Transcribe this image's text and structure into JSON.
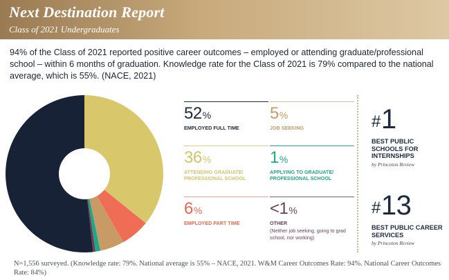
{
  "header": {
    "title": "Next Destination Report",
    "subtitle": "Class of 2021 Undergraduates"
  },
  "intro_text": "94% of the Class of 2021 reported positive career outcomes – employed or attending graduate/professional school – within 6 months of graduation. Knowledge rate for the Class of 2021 is 79% compared to the national average, which is 55%. (NACE, 2021)",
  "chart_data": {
    "type": "pie",
    "title": "",
    "categories": [
      "Employed Full Time",
      "Attending Graduate/Professional School",
      "Employed Part Time",
      "Job Seeking",
      "Applying to Graduate/Professional School",
      "Other"
    ],
    "values": [
      52,
      36,
      6,
      5,
      1,
      0.5
    ],
    "colors": [
      "#172236",
      "#d9c86b",
      "#ef6d54",
      "#c89b66",
      "#1ea888",
      "#6b3f57"
    ]
  },
  "stats": [
    {
      "value": "52",
      "unit": "%",
      "label": "EMPLOYED FULL TIME",
      "color": "#1b2a40",
      "rule": "#1b2a40"
    },
    {
      "value": "5",
      "unit": "%",
      "label": "JOB SEEKING",
      "color": "#c99a63",
      "rule": "#d9c49a"
    },
    {
      "value": "36",
      "unit": "%",
      "label": "ATTENDING GRADUATE/ PROFESSIONAL SCHOOL",
      "color": "#d6c46a",
      "rule": "#dccd8a"
    },
    {
      "value": "1",
      "unit": "%",
      "label": "APPLYING TO GRADUATE/ PROFESSIONAL SCHOOL",
      "color": "#1ea888",
      "rule": "#1ea888"
    },
    {
      "value": "6",
      "unit": "%",
      "label": "EMPLOYED PART TIME",
      "color": "#e9664e",
      "rule": "#e9a090"
    },
    {
      "value": "<1",
      "unit": "%",
      "label": "OTHER",
      "note": "(Neither job seeking, going to grad school, nor working)",
      "color": "#6b3f57",
      "rule": "#8a5d72"
    }
  ],
  "rankings": [
    {
      "hash": "#",
      "number": "1",
      "title": "BEST PUBLIC SCHOOLS FOR INTERNSHIPS",
      "source": "by Princeton Review"
    },
    {
      "hash": "#",
      "number": "13",
      "title": "BEST PUBLIC CAREER SERVICES",
      "source": "by Princeton Review"
    }
  ],
  "footnote": "N=1,556 surveyed. (Knowledge rate: 79%. National average is 55% – NACE, 2021. W&M Career Outcomes Rate: 94%. National Career Outcomes Rate: 84%)"
}
